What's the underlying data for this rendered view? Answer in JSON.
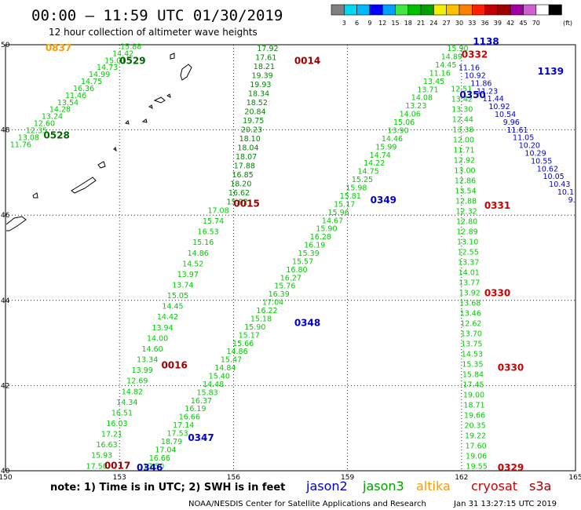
{
  "header": {
    "title": "00:00 – 11:59 UTC 01/30/2019",
    "subtitle": "12 hour collection of altimeter wave heights"
  },
  "colorbar": {
    "colors": [
      "#808080",
      "#00d8f0",
      "#00b8ff",
      "#0000ff",
      "#00a0ff",
      "#40e840",
      "#00c000",
      "#00a000",
      "#f0f000",
      "#ffc000",
      "#ff8000",
      "#ff2000",
      "#c00000",
      "#a00000",
      "#a000a0",
      "#d060d0",
      "#ffffff",
      "#000000"
    ],
    "labels": [
      "3",
      "6",
      "9",
      "12",
      "15",
      "18",
      "21",
      "24",
      "27",
      "30",
      "33",
      "36",
      "39",
      "42",
      "45",
      "70"
    ],
    "unit": "(ft)"
  },
  "axes": {
    "x_ticks": [
      "150",
      "153",
      "156",
      "159",
      "162",
      "165"
    ],
    "y_ticks": [
      "50",
      "48",
      "46",
      "44",
      "42",
      "40"
    ]
  },
  "legend": {
    "note": "note: 1) Time is in UTC; 2) SWH is in feet",
    "satellites": [
      {
        "name": "jason2",
        "color": "#0000cc"
      },
      {
        "name": "jason3",
        "color": "#00a000"
      },
      {
        "name": "altika",
        "color": "#ff9900"
      },
      {
        "name": "cryosat",
        "color": "#cc0000"
      },
      {
        "name": "s3a",
        "color": "#990000"
      }
    ]
  },
  "footer": {
    "center": "NOAA/NESDIS Center for Satellite Applications and Research",
    "timestamp": "Jan 31 13:27:15 UTC 2019"
  },
  "chart_data": {
    "type": "scatter",
    "xlim": [
      150,
      165
    ],
    "ylim": [
      40,
      50
    ],
    "grid": true,
    "time_labels": [
      {
        "text": "0837",
        "color": "#ff9900",
        "lon": 151.05,
        "lat": 49.85
      },
      {
        "text": "0529",
        "color": "#006600",
        "lon": 153.0,
        "lat": 49.55
      },
      {
        "text": "0528",
        "color": "#006600",
        "lon": 151.0,
        "lat": 47.8
      },
      {
        "text": "0014",
        "color": "#990000",
        "lon": 157.6,
        "lat": 49.55
      },
      {
        "text": "0015",
        "color": "#990000",
        "lon": 156.0,
        "lat": 46.2
      },
      {
        "text": "0016",
        "color": "#990000",
        "lon": 154.1,
        "lat": 42.4
      },
      {
        "text": "0017",
        "color": "#990000",
        "lon": 152.6,
        "lat": 40.05
      },
      {
        "text": "0346",
        "color": "#0000cc",
        "lon": 153.45,
        "lat": 40.0
      },
      {
        "text": "0347",
        "color": "#0000cc",
        "lon": 154.8,
        "lat": 40.7
      },
      {
        "text": "0348",
        "color": "#0000cc",
        "lon": 157.6,
        "lat": 43.4
      },
      {
        "text": "0349",
        "color": "#0000cc",
        "lon": 159.6,
        "lat": 46.28
      },
      {
        "text": "0350",
        "color": "#0000cc",
        "lon": 161.95,
        "lat": 48.75
      },
      {
        "text": "1138",
        "color": "#0000cc",
        "lon": 162.3,
        "lat": 50.0
      },
      {
        "text": "1139",
        "color": "#0000cc",
        "lon": 164.0,
        "lat": 49.3
      },
      {
        "text": "0332",
        "color": "#cc0000",
        "lon": 162.0,
        "lat": 49.7
      },
      {
        "text": "0331",
        "color": "#cc0000",
        "lon": 162.6,
        "lat": 46.15
      },
      {
        "text": "0330",
        "color": "#cc0000",
        "lon": 162.6,
        "lat": 44.1
      },
      {
        "text": "0330",
        "color": "#cc0000",
        "lon": 162.95,
        "lat": 42.35
      },
      {
        "text": "0329",
        "color": "#cc0000",
        "lon": 162.95,
        "lat": 40.0
      }
    ],
    "series": [
      {
        "group": "track-nw",
        "color": "#00cc00",
        "start": [
          153.3,
          49.9
        ],
        "end": [
          150.4,
          47.6
        ],
        "values": [
          "15.88",
          "14.42",
          "15.01",
          "14.73",
          "14.99",
          "14.75",
          "16.36",
          "11.46",
          "13.54",
          "14.28",
          "13.24",
          "12.60",
          "12.35",
          "13.08",
          "11.76"
        ]
      },
      {
        "group": "track-n1",
        "color": "#008800",
        "start": [
          156.9,
          49.85
        ],
        "end": [
          156.1,
          46.25
        ],
        "values": [
          "17.92",
          "17.61",
          "18.21",
          "19.39",
          "19.93",
          "18.34",
          "18.52",
          "20.84",
          "19.75",
          "20.23",
          "18.10",
          "18.04",
          "18.07",
          "17.88",
          "16.85",
          "18.20",
          "16.62",
          "15.92"
        ]
      },
      {
        "group": "track-n2",
        "color": "#00cc00",
        "start": [
          155.6,
          46.05
        ],
        "end": [
          152.4,
          40.05
        ],
        "values": [
          "17.08",
          "15.74",
          "16.53",
          "15.16",
          "14.86",
          "14.52",
          "13.97",
          "13.74",
          "15.05",
          "14.45",
          "14.42",
          "13.94",
          "14.00",
          "14.60",
          "13.34",
          "13.99",
          "12.69",
          "14.82",
          "14.34",
          "16.51",
          "16.03",
          "17.21",
          "16.63",
          "15.93",
          "17.50"
        ]
      },
      {
        "group": "track-diag",
        "color": "#00cc00",
        "start": [
          161.9,
          49.85
        ],
        "end": [
          153.9,
          40.05
        ],
        "values": [
          "15.90",
          "14.89",
          "14.45",
          "11.16",
          "13.45",
          "13.71",
          "14.08",
          "13.23",
          "14.06",
          "15.06",
          "13.90",
          "14.46",
          "15.99",
          "14.74",
          "14.22",
          "14.75",
          "15.25",
          "15.98",
          "15.81",
          "15.17",
          "15.96",
          "14.67",
          "15.90",
          "16.28",
          "16.19",
          "15.39",
          "15.57",
          "16.80",
          "16.27",
          "15.76",
          "16.39",
          "17.04",
          "16.22",
          "15.18",
          "15.90",
          "15.17",
          "15.66",
          "14.86",
          "15.47",
          "14.84",
          "15.40",
          "14.48",
          "15.83",
          "16.37",
          "16.19",
          "16.66",
          "17.14",
          "17.53",
          "18.79",
          "17.04",
          "16.66",
          "17.50"
        ]
      },
      {
        "group": "track-e",
        "color": "#00cc00",
        "start": [
          162.0,
          48.9
        ],
        "end": [
          162.4,
          40.05
        ],
        "values": [
          "12.51",
          "13.42",
          "13.30",
          "12.44",
          "13.38",
          "12.00",
          "11.71",
          "12.92",
          "13.00",
          "12.86",
          "13.54",
          "12.88",
          "12.32",
          "12.80",
          "12.89",
          "13.10",
          "12.55",
          "13.37",
          "14.01",
          "13.77",
          "13.92",
          "13.68",
          "13.46",
          "12.62",
          "13.70",
          "13.75",
          "14.53",
          "15.35",
          "15.84",
          "17.45",
          "19.00",
          "18.71",
          "19.66",
          "20.35",
          "19.22",
          "17.60",
          "19.06",
          "19.55"
        ]
      },
      {
        "group": "track-j2",
        "color": "#0000cc",
        "start": [
          162.2,
          49.4
        ],
        "end": [
          164.9,
          46.3
        ],
        "values": [
          "11.16",
          "10.92",
          "11.86",
          "11.23",
          "11.44",
          "10.92",
          "10.54",
          "9.96",
          "11.61",
          "11.05",
          "10.20",
          "10.29",
          "10.55",
          "10.62",
          "10.05",
          "10.43",
          "10.1",
          "9."
        ]
      }
    ]
  }
}
